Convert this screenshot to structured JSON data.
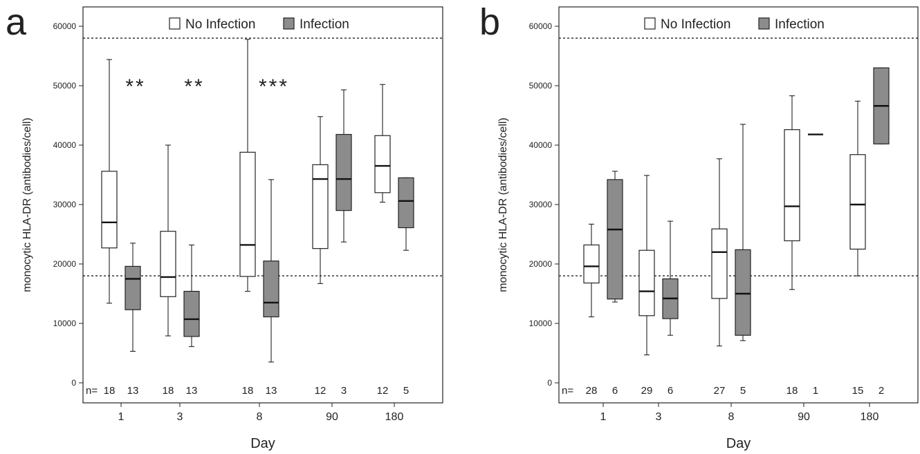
{
  "chart_data": [
    {
      "type": "box",
      "panel_label": "a",
      "xlabel": "Day",
      "ylabel": "monocytic HLA-DR (antibodies/cell)",
      "ylim": [
        0,
        63000
      ],
      "yticks": [
        0,
        10000,
        20000,
        30000,
        40000,
        50000,
        60000
      ],
      "categories": [
        "1",
        "3",
        "8",
        "90",
        "180"
      ],
      "reference_lines": [
        18000,
        58000
      ],
      "legend": {
        "placement": "top",
        "entries": [
          "No Infection",
          "Infection"
        ]
      },
      "n_prefix": "n=",
      "series": [
        {
          "name": "No Infection",
          "color": "#ffffff",
          "boxes": [
            {
              "min": 13400,
              "q1": 22700,
              "median": 27000,
              "q3": 35600,
              "max": 54400,
              "n": "18"
            },
            {
              "min": 7900,
              "q1": 14500,
              "median": 17800,
              "q3": 25500,
              "max": 40000,
              "n": "18"
            },
            {
              "min": 15400,
              "q1": 17900,
              "median": 23200,
              "q3": 38800,
              "max": 57800,
              "n": "18"
            },
            {
              "min": 16700,
              "q1": 22600,
              "median": 34300,
              "q3": 36700,
              "max": 44800,
              "n": "12"
            },
            {
              "min": 30400,
              "q1": 32000,
              "median": 36500,
              "q3": 41600,
              "max": 50200,
              "n": "12"
            }
          ]
        },
        {
          "name": "Infection",
          "color": "#8c8c8c",
          "boxes": [
            {
              "min": 5300,
              "q1": 12300,
              "median": 17500,
              "q3": 19600,
              "max": 23500,
              "n": "13"
            },
            {
              "min": 6100,
              "q1": 7800,
              "median": 10700,
              "q3": 15400,
              "max": 23200,
              "n": "13"
            },
            {
              "min": 3500,
              "q1": 11100,
              "median": 13500,
              "q3": 20500,
              "max": 34200,
              "n": "13"
            },
            {
              "min": 23700,
              "q1": 29000,
              "median": 34300,
              "q3": 41800,
              "max": 49300,
              "n": "3"
            },
            {
              "min": 22300,
              "q1": 26100,
              "median": 30600,
              "q3": 34500,
              "max": 34500,
              "n": "5"
            }
          ]
        }
      ],
      "significance": [
        {
          "category": "1",
          "label": "**"
        },
        {
          "category": "3",
          "label": "**"
        },
        {
          "category": "8",
          "label": "***"
        }
      ]
    },
    {
      "type": "box",
      "panel_label": "b",
      "xlabel": "Day",
      "ylabel": "monocytic HLA-DR (antibodies/cell)",
      "ylim": [
        0,
        63000
      ],
      "yticks": [
        0,
        10000,
        20000,
        30000,
        40000,
        50000,
        60000
      ],
      "categories": [
        "1",
        "3",
        "8",
        "90",
        "180"
      ],
      "reference_lines": [
        18000,
        58000
      ],
      "legend": {
        "placement": "top",
        "entries": [
          "No Infection",
          "Infection"
        ]
      },
      "n_prefix": "n=",
      "series": [
        {
          "name": "No Infection",
          "color": "#ffffff",
          "boxes": [
            {
              "min": 11100,
              "q1": 16800,
              "median": 19600,
              "q3": 23200,
              "max": 26700,
              "n": "28"
            },
            {
              "min": 4700,
              "q1": 11300,
              "median": 15400,
              "q3": 22300,
              "max": 34900,
              "n": "29"
            },
            {
              "min": 6200,
              "q1": 14200,
              "median": 22000,
              "q3": 25900,
              "max": 37700,
              "n": "27"
            },
            {
              "min": 15700,
              "q1": 23900,
              "median": 29700,
              "q3": 42600,
              "max": 48300,
              "n": "18"
            },
            {
              "min": 18000,
              "q1": 22500,
              "median": 30000,
              "q3": 38400,
              "max": 47400,
              "n": "15"
            }
          ]
        },
        {
          "name": "Infection",
          "color": "#8c8c8c",
          "boxes": [
            {
              "min": 13600,
              "q1": 14100,
              "median": 25800,
              "q3": 34200,
              "max": 35600,
              "n": "6"
            },
            {
              "min": 8000,
              "q1": 10800,
              "median": 14200,
              "q3": 17500,
              "max": 27200,
              "n": "6"
            },
            {
              "min": 7100,
              "q1": 8000,
              "median": 15000,
              "q3": 22400,
              "max": 43500,
              "n": "5"
            },
            {
              "min": 41800,
              "q1": 41800,
              "median": 41800,
              "q3": 41800,
              "max": 41800,
              "n": "1"
            },
            {
              "min": 40200,
              "q1": 40200,
              "median": 46600,
              "q3": 53000,
              "max": 53000,
              "n": "2"
            }
          ]
        }
      ],
      "significance": []
    }
  ]
}
